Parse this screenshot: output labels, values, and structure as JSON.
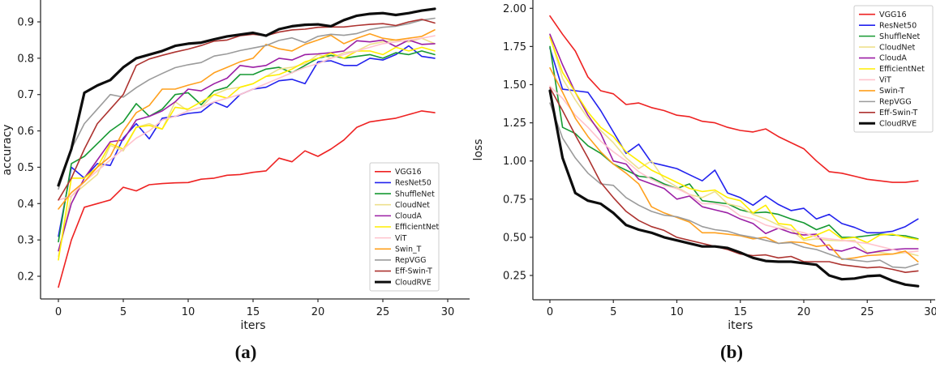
{
  "figure": {
    "background": "#ffffff",
    "text_color": "#1a1a1a",
    "spine_color": "#2b2b2b",
    "legend_border_color": "#cccccc"
  },
  "chart_data": [
    {
      "id": "a",
      "type": "line",
      "caption": "(a)",
      "xlabel": "iters",
      "ylabel": "accuracy",
      "grid": false,
      "legend_position": "lower right",
      "x_ticks": [
        0,
        5,
        10,
        15,
        20,
        25,
        30
      ],
      "y_ticks": [
        0.2,
        0.3,
        0.4,
        0.5,
        0.6,
        0.7,
        0.8,
        0.9
      ],
      "y_tick_decimals": 1,
      "xlim": [
        -1.375,
        30.25
      ],
      "ylim": [
        0.1376,
        0.9602
      ],
      "x": [
        0,
        1,
        2,
        3,
        4,
        5,
        6,
        7,
        8,
        9,
        10,
        11,
        12,
        13,
        14,
        15,
        16,
        17,
        18,
        19,
        20,
        21,
        22,
        23,
        24,
        25,
        26,
        27,
        28,
        29
      ],
      "series": [
        {
          "name": "VGG16",
          "color": "#ee2222",
          "width": 1.6,
          "values": [
            0.17,
            0.3,
            0.39,
            0.4,
            0.41,
            0.445,
            0.435,
            0.452,
            0.455,
            0.457,
            0.458,
            0.467,
            0.47,
            0.478,
            0.48,
            0.486,
            0.49,
            0.525,
            0.515,
            0.545,
            0.53,
            0.55,
            0.575,
            0.61,
            0.625,
            0.63,
            0.635,
            0.645,
            0.655,
            0.65
          ]
        },
        {
          "name": "ResNet50",
          "color": "#2222ee",
          "width": 1.6,
          "values": [
            0.31,
            0.5,
            0.47,
            0.51,
            0.505,
            0.58,
            0.62,
            0.578,
            0.635,
            0.64,
            0.648,
            0.652,
            0.68,
            0.665,
            0.7,
            0.715,
            0.72,
            0.738,
            0.742,
            0.73,
            0.79,
            0.793,
            0.78,
            0.78,
            0.8,
            0.795,
            0.81,
            0.834,
            0.805,
            0.8
          ]
        },
        {
          "name": "ShuffleNet",
          "color": "#169932",
          "width": 1.6,
          "values": [
            0.295,
            0.51,
            0.53,
            0.565,
            0.6,
            0.625,
            0.675,
            0.64,
            0.66,
            0.7,
            0.705,
            0.672,
            0.71,
            0.72,
            0.755,
            0.755,
            0.77,
            0.775,
            0.76,
            0.78,
            0.8,
            0.808,
            0.8,
            0.805,
            0.81,
            0.8,
            0.815,
            0.81,
            0.82,
            0.81
          ]
        },
        {
          "name": "CloudNet",
          "color": "#eee08e",
          "width": 1.6,
          "values": [
            0.255,
            0.42,
            0.45,
            0.48,
            0.56,
            0.545,
            0.61,
            0.62,
            0.605,
            0.68,
            0.655,
            0.665,
            0.7,
            0.715,
            0.72,
            0.73,
            0.75,
            0.77,
            0.775,
            0.785,
            0.81,
            0.8,
            0.815,
            0.82,
            0.838,
            0.845,
            0.85,
            0.845,
            0.855,
            0.84
          ]
        },
        {
          "name": "CloudA",
          "color": "#9b1fa5",
          "width": 1.6,
          "values": [
            0.27,
            0.4,
            0.47,
            0.52,
            0.57,
            0.575,
            0.63,
            0.64,
            0.655,
            0.68,
            0.715,
            0.71,
            0.73,
            0.745,
            0.78,
            0.775,
            0.78,
            0.8,
            0.795,
            0.81,
            0.812,
            0.815,
            0.82,
            0.848,
            0.845,
            0.85,
            0.832,
            0.85,
            0.838,
            0.84
          ]
        },
        {
          "name": "EfficientNet",
          "color": "#ffee00",
          "width": 1.6,
          "values": [
            0.245,
            0.47,
            0.47,
            0.5,
            0.565,
            0.55,
            0.61,
            0.615,
            0.605,
            0.665,
            0.66,
            0.68,
            0.7,
            0.69,
            0.72,
            0.73,
            0.75,
            0.755,
            0.77,
            0.79,
            0.8,
            0.814,
            0.8,
            0.82,
            0.82,
            0.81,
            0.83,
            0.82,
            0.83,
            0.82
          ]
        },
        {
          "name": "ViT",
          "color": "#ffc3cd",
          "width": 1.6,
          "values": [
            0.41,
            0.42,
            0.46,
            0.49,
            0.52,
            0.55,
            0.58,
            0.6,
            0.63,
            0.64,
            0.655,
            0.665,
            0.68,
            0.69,
            0.7,
            0.715,
            0.73,
            0.745,
            0.76,
            0.775,
            0.785,
            0.8,
            0.81,
            0.82,
            0.83,
            0.84,
            0.845,
            0.85,
            0.855,
            0.862
          ]
        },
        {
          "name": "Swin_T",
          "color": "#ffa01e",
          "width": 1.6,
          "values": [
            0.385,
            0.43,
            0.46,
            0.5,
            0.53,
            0.6,
            0.65,
            0.67,
            0.715,
            0.715,
            0.726,
            0.735,
            0.76,
            0.775,
            0.79,
            0.8,
            0.838,
            0.826,
            0.82,
            0.838,
            0.85,
            0.863,
            0.84,
            0.855,
            0.867,
            0.855,
            0.85,
            0.855,
            0.86,
            0.878
          ]
        },
        {
          "name": "RepVGG",
          "color": "#9b9b9b",
          "width": 1.6,
          "values": [
            0.44,
            0.55,
            0.62,
            0.66,
            0.7,
            0.693,
            0.719,
            0.741,
            0.758,
            0.774,
            0.782,
            0.788,
            0.806,
            0.812,
            0.821,
            0.828,
            0.835,
            0.849,
            0.856,
            0.843,
            0.86,
            0.866,
            0.863,
            0.868,
            0.879,
            0.885,
            0.888,
            0.895,
            0.905,
            0.91
          ]
        },
        {
          "name": "Eff-Swin-T",
          "color": "#ad3330",
          "width": 1.6,
          "values": [
            0.41,
            0.47,
            0.55,
            0.62,
            0.66,
            0.7,
            0.78,
            0.798,
            0.808,
            0.817,
            0.825,
            0.835,
            0.847,
            0.85,
            0.862,
            0.866,
            0.862,
            0.872,
            0.878,
            0.88,
            0.885,
            0.886,
            0.886,
            0.89,
            0.893,
            0.895,
            0.89,
            0.9,
            0.907,
            0.897
          ]
        },
        {
          "name": "CloudRVE",
          "color": "#0d0d0d",
          "width": 3.2,
          "values": [
            0.45,
            0.55,
            0.705,
            0.725,
            0.74,
            0.775,
            0.8,
            0.81,
            0.82,
            0.834,
            0.84,
            0.843,
            0.852,
            0.86,
            0.865,
            0.87,
            0.862,
            0.88,
            0.888,
            0.892,
            0.893,
            0.888,
            0.905,
            0.917,
            0.922,
            0.924,
            0.919,
            0.924,
            0.931,
            0.936
          ]
        }
      ]
    },
    {
      "id": "b",
      "type": "line",
      "caption": "(b)",
      "xlabel": "iters",
      "ylabel": "loss",
      "grid": false,
      "legend_position": "upper right",
      "x_ticks": [
        0,
        5,
        10,
        15,
        20,
        25,
        30
      ],
      "y_ticks": [
        0.25,
        0.5,
        0.75,
        1.0,
        1.25,
        1.5,
        1.75,
        2.0
      ],
      "y_tick_decimals": 2,
      "xlim": [
        -1.34,
        30.16
      ],
      "ylim": [
        0.0908,
        2.0546
      ],
      "x": [
        0,
        1,
        2,
        3,
        4,
        5,
        6,
        7,
        8,
        9,
        10,
        11,
        12,
        13,
        14,
        15,
        16,
        17,
        18,
        19,
        20,
        21,
        22,
        23,
        24,
        25,
        26,
        27,
        28,
        29
      ],
      "series": [
        {
          "name": "VGG16",
          "color": "#ee2222",
          "width": 1.6,
          "values": [
            1.95,
            1.83,
            1.72,
            1.55,
            1.46,
            1.44,
            1.37,
            1.38,
            1.35,
            1.33,
            1.3,
            1.29,
            1.26,
            1.25,
            1.22,
            1.2,
            1.19,
            1.21,
            1.16,
            1.12,
            1.08,
            1.0,
            0.93,
            0.92,
            0.9,
            0.88,
            0.87,
            0.86,
            0.86,
            0.87
          ]
        },
        {
          "name": "ResNet50",
          "color": "#2222ee",
          "width": 1.6,
          "values": [
            1.74,
            1.47,
            1.46,
            1.45,
            1.33,
            1.19,
            1.05,
            1.11,
            0.99,
            0.97,
            0.95,
            0.91,
            0.87,
            0.94,
            0.79,
            0.76,
            0.71,
            0.77,
            0.715,
            0.675,
            0.69,
            0.62,
            0.65,
            0.59,
            0.565,
            0.53,
            0.53,
            0.54,
            0.57,
            0.62
          ]
        },
        {
          "name": "ShuffleNet",
          "color": "#169932",
          "width": 1.6,
          "values": [
            1.75,
            1.22,
            1.18,
            1.1,
            1.05,
            0.98,
            0.94,
            0.9,
            0.89,
            0.85,
            0.82,
            0.85,
            0.74,
            0.73,
            0.72,
            0.68,
            0.66,
            0.665,
            0.65,
            0.62,
            0.595,
            0.55,
            0.58,
            0.5,
            0.5,
            0.51,
            0.52,
            0.515,
            0.51,
            0.49
          ]
        },
        {
          "name": "CloudNet",
          "color": "#eee08e",
          "width": 1.6,
          "values": [
            1.82,
            1.54,
            1.4,
            1.28,
            1.2,
            1.12,
            1.02,
            0.95,
            1.0,
            0.88,
            0.83,
            0.78,
            0.76,
            0.8,
            0.72,
            0.7,
            0.65,
            0.62,
            0.58,
            0.55,
            0.48,
            0.49,
            0.48,
            0.477,
            0.48,
            0.4,
            0.4,
            0.39,
            0.4,
            0.38
          ]
        },
        {
          "name": "CloudA",
          "color": "#9b1fa5",
          "width": 1.6,
          "values": [
            1.83,
            1.63,
            1.45,
            1.3,
            1.18,
            1.0,
            0.98,
            0.88,
            0.85,
            0.82,
            0.75,
            0.77,
            0.7,
            0.68,
            0.66,
            0.62,
            0.59,
            0.525,
            0.56,
            0.53,
            0.515,
            0.52,
            0.42,
            0.41,
            0.435,
            0.395,
            0.41,
            0.42,
            0.425,
            0.425
          ]
        },
        {
          "name": "EfficientNet",
          "color": "#ffee00",
          "width": 1.6,
          "values": [
            1.81,
            1.58,
            1.45,
            1.32,
            1.22,
            1.16,
            1.06,
            1.0,
            0.94,
            0.9,
            0.86,
            0.82,
            0.8,
            0.81,
            0.76,
            0.74,
            0.66,
            0.71,
            0.59,
            0.58,
            0.49,
            0.515,
            0.55,
            0.49,
            0.5,
            0.465,
            0.515,
            0.52,
            0.5,
            0.485
          ]
        },
        {
          "name": "ViT",
          "color": "#ffc3cd",
          "width": 1.6,
          "values": [
            1.49,
            1.41,
            1.3,
            1.22,
            1.13,
            1.06,
            1.0,
            0.93,
            0.88,
            0.84,
            0.82,
            0.78,
            0.72,
            0.72,
            0.7,
            0.64,
            0.62,
            0.58,
            0.56,
            0.55,
            0.53,
            0.5,
            0.49,
            0.48,
            0.47,
            0.46,
            0.44,
            0.42,
            0.4,
            0.41
          ]
        },
        {
          "name": "Swin-T",
          "color": "#ffa01e",
          "width": 1.6,
          "values": [
            1.61,
            1.45,
            1.28,
            1.16,
            1.06,
            0.98,
            0.92,
            0.85,
            0.7,
            0.66,
            0.63,
            0.6,
            0.53,
            0.53,
            0.52,
            0.51,
            0.49,
            0.5,
            0.46,
            0.47,
            0.465,
            0.44,
            0.45,
            0.355,
            0.365,
            0.38,
            0.385,
            0.39,
            0.41,
            0.34
          ]
        },
        {
          "name": "RepVGG",
          "color": "#9b9b9b",
          "width": 1.6,
          "values": [
            1.38,
            1.15,
            1.02,
            0.92,
            0.85,
            0.84,
            0.76,
            0.71,
            0.67,
            0.645,
            0.635,
            0.61,
            0.57,
            0.55,
            0.54,
            0.515,
            0.5,
            0.48,
            0.46,
            0.465,
            0.435,
            0.42,
            0.39,
            0.36,
            0.35,
            0.34,
            0.35,
            0.305,
            0.3,
            0.325
          ]
        },
        {
          "name": "Eff-Swin-T",
          "color": "#ad3330",
          "width": 1.6,
          "values": [
            1.48,
            1.33,
            1.17,
            1.02,
            0.86,
            0.76,
            0.67,
            0.61,
            0.57,
            0.545,
            0.5,
            0.48,
            0.46,
            0.44,
            0.42,
            0.39,
            0.38,
            0.385,
            0.365,
            0.375,
            0.34,
            0.34,
            0.34,
            0.32,
            0.31,
            0.3,
            0.305,
            0.29,
            0.27,
            0.28
          ]
        },
        {
          "name": "CloudRVE",
          "color": "#0d0d0d",
          "width": 3.2,
          "values": [
            1.46,
            1.02,
            0.79,
            0.74,
            0.72,
            0.66,
            0.58,
            0.55,
            0.53,
            0.5,
            0.48,
            0.46,
            0.44,
            0.44,
            0.43,
            0.4,
            0.365,
            0.345,
            0.34,
            0.34,
            0.33,
            0.32,
            0.25,
            0.225,
            0.23,
            0.245,
            0.25,
            0.215,
            0.19,
            0.18
          ]
        }
      ]
    }
  ]
}
